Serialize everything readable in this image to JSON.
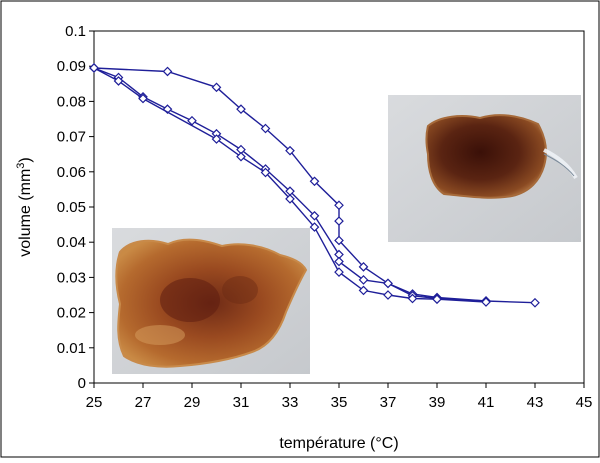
{
  "chart_data": {
    "type": "line",
    "title": "",
    "xlabel": "température (°C)",
    "ylabel": "volume (mm",
    "ylabel_superscript": "3",
    "ylabel_suffix": ")",
    "xlim": [
      25,
      45
    ],
    "ylim": [
      0,
      0.1
    ],
    "x_ticks": [
      "25",
      "27",
      "29",
      "31",
      "33",
      "35",
      "37",
      "39",
      "41",
      "43",
      "45"
    ],
    "y_ticks": [
      "0",
      "0.01",
      "0.02",
      "0.03",
      "0.04",
      "0.05",
      "0.06",
      "0.07",
      "0.08",
      "0.09",
      "0.1"
    ],
    "grid": false,
    "marker": "diamond-open",
    "series_color": "#1f1f99",
    "series": [
      {
        "points": [
          [
            25,
            0.0895
          ],
          [
            28,
            0.0885
          ],
          [
            30,
            0.084
          ],
          [
            31,
            0.0778
          ],
          [
            32,
            0.0723
          ],
          [
            33,
            0.066
          ],
          [
            34,
            0.0573
          ],
          [
            35,
            0.0505
          ],
          [
            35,
            0.046
          ],
          [
            35,
            0.0405
          ],
          [
            36,
            0.033
          ],
          [
            37,
            0.0283
          ],
          [
            38,
            0.0253
          ],
          [
            39,
            0.0243
          ],
          [
            41,
            0.0233
          ],
          [
            43,
            0.0228
          ]
        ]
      },
      {
        "points": [
          [
            25,
            0.0895
          ],
          [
            26,
            0.0868
          ],
          [
            27,
            0.0813
          ],
          [
            28,
            0.0778
          ],
          [
            29,
            0.0745
          ],
          [
            30,
            0.0708
          ],
          [
            31,
            0.0663
          ],
          [
            32,
            0.0608
          ],
          [
            33,
            0.0545
          ],
          [
            34,
            0.0475
          ],
          [
            35,
            0.0365
          ],
          [
            35,
            0.0345
          ],
          [
            36,
            0.0293
          ],
          [
            37,
            0.0283
          ],
          [
            38,
            0.0248
          ],
          [
            39,
            0.024
          ],
          [
            41,
            0.0233
          ]
        ]
      },
      {
        "points": [
          [
            25,
            0.0895
          ],
          [
            26,
            0.0858
          ],
          [
            27,
            0.0808
          ],
          [
            30,
            0.0693
          ],
          [
            31,
            0.0643
          ],
          [
            32,
            0.0598
          ],
          [
            33,
            0.0523
          ],
          [
            34,
            0.0443
          ],
          [
            35,
            0.0315
          ],
          [
            36,
            0.0263
          ],
          [
            37,
            0.025
          ],
          [
            38,
            0.024
          ],
          [
            39,
            0.0238
          ],
          [
            41,
            0.023
          ]
        ]
      }
    ],
    "inset_images": [
      {
        "name": "swollen-gel-photo",
        "description_color": "#a8662a"
      },
      {
        "name": "collapsed-gel-photo",
        "description_color": "#5a2412"
      }
    ]
  }
}
